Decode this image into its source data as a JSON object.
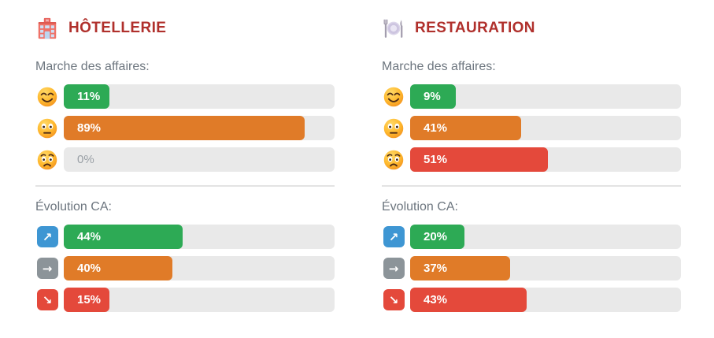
{
  "colors": {
    "green": "#2daa55",
    "orange": "#e07b28",
    "red": "#e4493b",
    "blue": "#3e96d3",
    "gray": "#8c9499",
    "track_gray": "#e9e9e9",
    "title_red": "#b0302c",
    "label_gray": "#6d767f"
  },
  "columns": [
    {
      "title": "HÔTELLERIE",
      "icon": "hotel-building-icon",
      "sections": [
        {
          "label": "Marche des affaires:",
          "rows": [
            {
              "icon": "smiling-face-emoji",
              "label": "11%",
              "value": 11,
              "color": "green"
            },
            {
              "icon": "neutral-face-emoji",
              "label": "89%",
              "value": 89,
              "color": "orange"
            },
            {
              "icon": "worried-face-emoji",
              "label": "0%",
              "value": 0,
              "color": "none"
            }
          ]
        },
        {
          "label": "Évolution CA:",
          "rows": [
            {
              "icon": "arrow-up-right-icon",
              "glyph": "↗",
              "badge": "blue",
              "label": "44%",
              "value": 44,
              "color": "green"
            },
            {
              "icon": "arrow-right-icon",
              "glyph": "→",
              "badge": "gray",
              "label": "40%",
              "value": 40,
              "color": "orange"
            },
            {
              "icon": "arrow-down-right-icon",
              "glyph": "↘",
              "badge": "red",
              "label": "15%",
              "value": 15,
              "color": "red"
            }
          ]
        }
      ]
    },
    {
      "title": "RESTAURATION",
      "icon": "fork-knife-plate-icon",
      "sections": [
        {
          "label": "Marche des affaires:",
          "rows": [
            {
              "icon": "smiling-face-emoji",
              "label": "9%",
              "value": 9,
              "color": "green"
            },
            {
              "icon": "neutral-face-emoji",
              "label": "41%",
              "value": 41,
              "color": "orange"
            },
            {
              "icon": "worried-face-emoji",
              "label": "51%",
              "value": 51,
              "color": "red"
            }
          ]
        },
        {
          "label": "Évolution CA:",
          "rows": [
            {
              "icon": "arrow-up-right-icon",
              "glyph": "↗",
              "badge": "blue",
              "label": "20%",
              "value": 20,
              "color": "green"
            },
            {
              "icon": "arrow-right-icon",
              "glyph": "→",
              "badge": "gray",
              "label": "37%",
              "value": 37,
              "color": "orange"
            },
            {
              "icon": "arrow-down-right-icon",
              "glyph": "↘",
              "badge": "red",
              "label": "43%",
              "value": 43,
              "color": "red"
            }
          ]
        }
      ]
    }
  ],
  "chart_data": [
    {
      "type": "bar",
      "orientation": "horizontal",
      "title": "Hôtellerie — Marche des affaires",
      "categories": [
        "smiling-face (positif)",
        "neutral-face (neutre)",
        "worried-face (négatif)"
      ],
      "values": [
        11,
        89,
        0
      ],
      "unit": "%",
      "xlim": [
        0,
        100
      ],
      "bar_colors": [
        "#2daa55",
        "#e07b28",
        "none"
      ]
    },
    {
      "type": "bar",
      "orientation": "horizontal",
      "title": "Hôtellerie — Évolution CA",
      "categories": [
        "hausse (↗)",
        "stable (→)",
        "baisse (↘)"
      ],
      "values": [
        44,
        40,
        15
      ],
      "unit": "%",
      "xlim": [
        0,
        100
      ],
      "bar_colors": [
        "#2daa55",
        "#e07b28",
        "#e4493b"
      ]
    },
    {
      "type": "bar",
      "orientation": "horizontal",
      "title": "Restauration — Marche des affaires",
      "categories": [
        "smiling-face (positif)",
        "neutral-face (neutre)",
        "worried-face (négatif)"
      ],
      "values": [
        9,
        41,
        51
      ],
      "unit": "%",
      "xlim": [
        0,
        100
      ],
      "bar_colors": [
        "#2daa55",
        "#e07b28",
        "#e4493b"
      ]
    },
    {
      "type": "bar",
      "orientation": "horizontal",
      "title": "Restauration — Évolution CA",
      "categories": [
        "hausse (↗)",
        "stable (→)",
        "baisse (↘)"
      ],
      "values": [
        20,
        37,
        43
      ],
      "unit": "%",
      "xlim": [
        0,
        100
      ],
      "bar_colors": [
        "#2daa55",
        "#e07b28",
        "#e4493b"
      ]
    }
  ]
}
